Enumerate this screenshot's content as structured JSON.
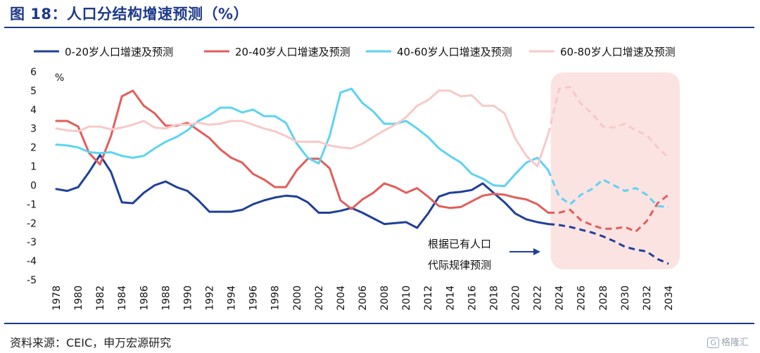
{
  "title": "图 18：人口分结构增速预测（%）",
  "source": "资料来源：CEIC，申万宏源研究",
  "watermark": "格隆汇",
  "chart_data": {
    "type": "line",
    "ylabel": "%",
    "ylim": [
      -5,
      6
    ],
    "yticks": [
      -5,
      -4,
      -3,
      -2,
      -1,
      0,
      1,
      2,
      3,
      4,
      5,
      6
    ],
    "xticks": [
      "1978",
      "1980",
      "1982",
      "1984",
      "1986",
      "1988",
      "1990",
      "1992",
      "1994",
      "1996",
      "1998",
      "2000",
      "2002",
      "2004",
      "2006",
      "2008",
      "2010",
      "2012",
      "2014",
      "2016",
      "2018",
      "2020",
      "2022",
      "2024",
      "2026",
      "2028",
      "2030",
      "2032",
      "2034"
    ],
    "x_range": [
      1978,
      2034
    ],
    "forecast_start": 2023,
    "forecast_region": [
      2024,
      2034
    ],
    "annotation": [
      "根据已有人口",
      "代际规律预测"
    ],
    "legend_position": "top",
    "series": [
      {
        "name": "0-20岁人口增速及预测",
        "color": "#1f3f99",
        "x": [
          1978,
          1979,
          1980,
          1981,
          1982,
          1983,
          1984,
          1985,
          1986,
          1987,
          1988,
          1989,
          1990,
          1991,
          1992,
          1993,
          1994,
          1995,
          1996,
          1997,
          1998,
          1999,
          2000,
          2001,
          2002,
          2003,
          2004,
          2005,
          2006,
          2007,
          2008,
          2009,
          2010,
          2011,
          2012,
          2013,
          2014,
          2015,
          2016,
          2017,
          2018,
          2019,
          2020,
          2021,
          2022,
          2023,
          2024,
          2025,
          2026,
          2027,
          2028,
          2029,
          2030,
          2031,
          2032,
          2033,
          2034
        ],
        "values": [
          -0.2,
          -0.3,
          -0.1,
          0.7,
          1.6,
          0.7,
          -0.9,
          -0.95,
          -0.4,
          0.0,
          0.2,
          -0.1,
          -0.3,
          -0.8,
          -1.4,
          -1.4,
          -1.4,
          -1.3,
          -1.0,
          -0.8,
          -0.65,
          -0.55,
          -0.6,
          -0.9,
          -1.45,
          -1.45,
          -1.35,
          -1.2,
          -1.45,
          -1.75,
          -2.05,
          -2.0,
          -1.95,
          -2.25,
          -1.5,
          -0.6,
          -0.4,
          -0.35,
          -0.25,
          0.1,
          -0.4,
          -0.9,
          -1.5,
          -1.8,
          -1.95,
          -2.05,
          -2.1,
          -2.2,
          -2.35,
          -2.5,
          -2.7,
          -2.95,
          -3.25,
          -3.4,
          -3.5,
          -3.9,
          -4.15
        ],
        "forecast_from": 2023
      },
      {
        "name": "20-40岁人口增速及预测",
        "color": "#e35d5a",
        "x": [
          1978,
          1979,
          1980,
          1981,
          1982,
          1983,
          1984,
          1985,
          1986,
          1987,
          1988,
          1989,
          1990,
          1991,
          1992,
          1993,
          1994,
          1995,
          1996,
          1997,
          1998,
          1999,
          2000,
          2001,
          2002,
          2003,
          2004,
          2005,
          2006,
          2007,
          2008,
          2009,
          2010,
          2011,
          2012,
          2013,
          2014,
          2015,
          2016,
          2017,
          2018,
          2019,
          2020,
          2021,
          2022,
          2023,
          2024,
          2025,
          2026,
          2027,
          2028,
          2029,
          2030,
          2031,
          2032,
          2033,
          2034
        ],
        "values": [
          3.4,
          3.4,
          3.1,
          1.7,
          1.1,
          2.6,
          4.7,
          5.0,
          4.2,
          3.8,
          3.15,
          3.15,
          3.3,
          2.9,
          2.5,
          1.9,
          1.45,
          1.2,
          0.6,
          0.3,
          -0.1,
          -0.1,
          0.8,
          1.4,
          1.4,
          0.9,
          -0.8,
          -1.25,
          -0.75,
          -0.4,
          0.1,
          -0.1,
          -0.4,
          -0.15,
          -0.6,
          -1.1,
          -1.2,
          -1.15,
          -0.85,
          -0.55,
          -0.45,
          -0.5,
          -0.65,
          -0.75,
          -1.0,
          -1.45,
          -1.45,
          -1.3,
          -1.85,
          -2.1,
          -2.3,
          -2.3,
          -2.2,
          -2.45,
          -1.9,
          -0.95,
          -0.5
        ],
        "forecast_from": 2023
      },
      {
        "name": "40-60岁人口增速及预测",
        "color": "#5dd3f3",
        "x": [
          1978,
          1979,
          1980,
          1981,
          1982,
          1983,
          1984,
          1985,
          1986,
          1987,
          1988,
          1989,
          1990,
          1991,
          1992,
          1993,
          1994,
          1995,
          1996,
          1997,
          1998,
          1999,
          2000,
          2001,
          2002,
          2003,
          2004,
          2005,
          2006,
          2007,
          2008,
          2009,
          2010,
          2011,
          2012,
          2013,
          2014,
          2015,
          2016,
          2017,
          2018,
          2019,
          2020,
          2021,
          2022,
          2023,
          2024,
          2025,
          2026,
          2027,
          2028,
          2029,
          2030,
          2031,
          2032,
          2033,
          2034
        ],
        "values": [
          2.15,
          2.1,
          2.0,
          1.75,
          1.7,
          1.75,
          1.55,
          1.45,
          1.55,
          1.95,
          2.3,
          2.55,
          2.9,
          3.4,
          3.7,
          4.1,
          4.1,
          3.85,
          4.0,
          3.65,
          3.65,
          3.3,
          2.2,
          1.45,
          1.15,
          2.6,
          4.9,
          5.1,
          4.35,
          3.9,
          3.25,
          3.25,
          3.4,
          3.0,
          2.55,
          1.95,
          1.55,
          1.2,
          0.6,
          0.35,
          0.0,
          -0.05,
          0.6,
          1.2,
          1.45,
          0.8,
          -0.6,
          -1.0,
          -0.5,
          -0.2,
          0.3,
          0.0,
          -0.3,
          -0.15,
          -0.5,
          -1.1,
          -1.15
        ],
        "forecast_from": 2023
      },
      {
        "name": "60-80岁人口增速及预测",
        "color": "#f7c9c8",
        "x": [
          1978,
          1979,
          1980,
          1981,
          1982,
          1983,
          1984,
          1985,
          1986,
          1987,
          1988,
          1989,
          1990,
          1991,
          1992,
          1993,
          1994,
          1995,
          1996,
          1997,
          1998,
          1999,
          2000,
          2001,
          2002,
          2003,
          2004,
          2005,
          2006,
          2007,
          2008,
          2009,
          2010,
          2011,
          2012,
          2013,
          2014,
          2015,
          2016,
          2017,
          2018,
          2019,
          2020,
          2021,
          2022,
          2023,
          2024,
          2025,
          2026,
          2027,
          2028,
          2029,
          2030,
          2031,
          2032,
          2033,
          2034
        ],
        "values": [
          3.0,
          2.9,
          2.85,
          3.1,
          3.1,
          2.95,
          3.05,
          3.2,
          3.4,
          3.05,
          3.0,
          3.2,
          3.2,
          3.3,
          3.2,
          3.25,
          3.4,
          3.4,
          3.2,
          3.0,
          2.85,
          2.6,
          2.3,
          2.3,
          2.3,
          2.1,
          2.0,
          1.95,
          2.2,
          2.55,
          2.9,
          3.2,
          3.6,
          4.2,
          4.5,
          5.0,
          5.0,
          4.7,
          4.75,
          4.2,
          4.2,
          3.8,
          2.45,
          1.55,
          1.0,
          2.7,
          5.1,
          5.2,
          4.3,
          3.8,
          3.1,
          3.05,
          3.25,
          2.9,
          2.65,
          2.0,
          1.45
        ],
        "forecast_from": 2023
      }
    ]
  }
}
